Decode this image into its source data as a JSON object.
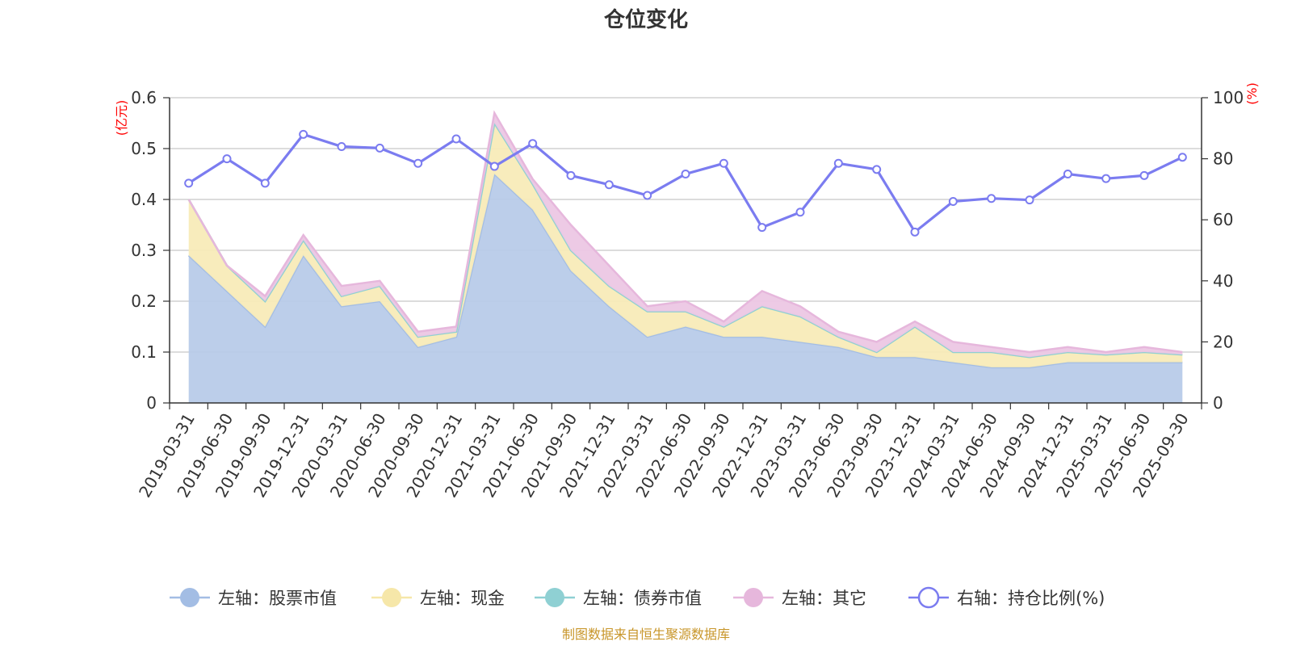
{
  "chart_data": {
    "type": "area",
    "title": "仓位变化",
    "left_axis_unit": "(亿元)",
    "right_axis_unit": "(%)",
    "left_ylim": [
      0,
      0.6
    ],
    "left_ticks": [
      "0",
      "0.1",
      "0.2",
      "0.3",
      "0.4",
      "0.5",
      "0.6"
    ],
    "right_ylim": [
      0,
      100
    ],
    "right_ticks": [
      "0",
      "20",
      "40",
      "60",
      "80",
      "100"
    ],
    "categories": [
      "2019-03-31",
      "2019-06-30",
      "2019-09-30",
      "2019-12-31",
      "2020-03-31",
      "2020-06-30",
      "2020-09-30",
      "2020-12-31",
      "2021-03-31",
      "2021-06-30",
      "2021-09-30",
      "2021-12-31",
      "2022-03-31",
      "2022-06-30",
      "2022-09-30",
      "2022-12-31",
      "2023-03-31",
      "2023-06-30",
      "2023-09-30",
      "2023-12-31",
      "2024-03-31",
      "2024-06-30",
      "2024-09-30",
      "2024-12-31",
      "2025-03-31",
      "2025-06-30",
      "2025-09-30"
    ],
    "series": [
      {
        "name": "左轴：股票市值",
        "axis": "left",
        "color": "#a3bde4",
        "fill": "#b8cbe9",
        "values": [
          0.29,
          0.22,
          0.15,
          0.29,
          0.19,
          0.2,
          0.11,
          0.13,
          0.45,
          0.38,
          0.26,
          0.19,
          0.13,
          0.15,
          0.13,
          0.13,
          0.12,
          0.11,
          0.09,
          0.09,
          0.08,
          0.07,
          0.07,
          0.08,
          0.08,
          0.08,
          0.08
        ]
      },
      {
        "name": "左轴：现金",
        "axis": "left",
        "color": "#f6e7a9",
        "fill": "#f8ebb8",
        "values": [
          0.11,
          0.05,
          0.05,
          0.03,
          0.02,
          0.03,
          0.02,
          0.01,
          0.1,
          0.05,
          0.04,
          0.04,
          0.05,
          0.03,
          0.02,
          0.06,
          0.05,
          0.02,
          0.01,
          0.06,
          0.02,
          0.03,
          0.02,
          0.02,
          0.015,
          0.02,
          0.015
        ]
      },
      {
        "name": "左轴：债券市值",
        "axis": "left",
        "color": "#8fd0d3",
        "fill": "#a9dcde",
        "values": [
          0,
          0,
          0,
          0,
          0,
          0,
          0,
          0,
          0,
          0,
          0,
          0,
          0,
          0,
          0,
          0,
          0,
          0,
          0,
          0,
          0,
          0,
          0,
          0,
          0,
          0,
          0
        ]
      },
      {
        "name": "左轴：其它",
        "axis": "left",
        "color": "#e6b7dc",
        "fill": "#ecc7e4",
        "values": [
          0.0,
          0.0,
          0.01,
          0.01,
          0.02,
          0.01,
          0.01,
          0.01,
          0.02,
          0.01,
          0.05,
          0.04,
          0.01,
          0.02,
          0.01,
          0.03,
          0.02,
          0.01,
          0.02,
          0.01,
          0.02,
          0.01,
          0.01,
          0.01,
          0.005,
          0.01,
          0.005
        ]
      },
      {
        "name": "右轴：持仓比例(%)",
        "axis": "right",
        "color": "#7b7cf0",
        "values": [
          72,
          80,
          72,
          88,
          84,
          83.5,
          78.5,
          86.5,
          77.5,
          85,
          74.5,
          71.5,
          68,
          75,
          78.5,
          57.5,
          62.5,
          78.5,
          76.5,
          56,
          66,
          67,
          66.5,
          75,
          73.5,
          74.5,
          80.5
        ]
      }
    ]
  },
  "source_note": "制图数据来自恒生聚源数据库"
}
